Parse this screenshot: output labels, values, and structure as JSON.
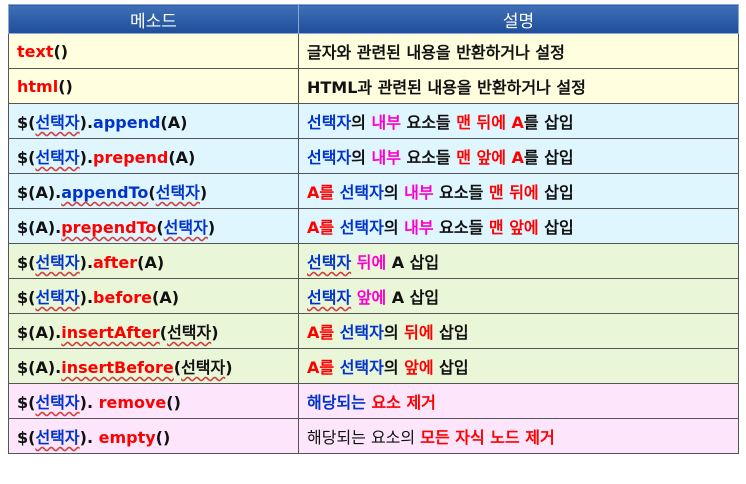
{
  "table": {
    "header": {
      "method": "메소드",
      "description": "설명"
    },
    "rows": [
      {
        "bg": "#ffffe0",
        "method": [
          {
            "t": "text",
            "c": "red"
          },
          {
            "t": "()",
            "c": "blk"
          }
        ],
        "desc": [
          {
            "t": "글자와 관련된 내용을 반환하거나 설정",
            "c": "blk"
          }
        ]
      },
      {
        "bg": "#ffffe0",
        "method": [
          {
            "t": "html",
            "c": "red"
          },
          {
            "t": "()",
            "c": "blk"
          }
        ],
        "desc": [
          {
            "t": "HTML과 관련된 내용을 반환하거나 설정",
            "c": "blk"
          }
        ]
      },
      {
        "bg": "#dff6ff",
        "method": [
          {
            "t": "$(",
            "c": "blk"
          },
          {
            "t": "선택자",
            "c": "blue",
            "sq": true
          },
          {
            "t": ").",
            "c": "blk"
          },
          {
            "t": "append",
            "c": "blue"
          },
          {
            "t": "(A)",
            "c": "blk"
          }
        ],
        "desc": [
          {
            "t": "선택자",
            "c": "blue"
          },
          {
            "t": "의 ",
            "c": "blk"
          },
          {
            "t": "내부",
            "c": "mag"
          },
          {
            "t": " 요소들 ",
            "c": "blk"
          },
          {
            "t": "맨 뒤에 A",
            "c": "red"
          },
          {
            "t": "를 삽입",
            "c": "blk"
          }
        ]
      },
      {
        "bg": "#dff6ff",
        "method": [
          {
            "t": "$(",
            "c": "blk"
          },
          {
            "t": "선택자",
            "c": "blue",
            "sq": true
          },
          {
            "t": ").",
            "c": "blk"
          },
          {
            "t": "prepend",
            "c": "red"
          },
          {
            "t": "(A)",
            "c": "blk"
          }
        ],
        "desc": [
          {
            "t": "선택자",
            "c": "blue"
          },
          {
            "t": "의 ",
            "c": "blk"
          },
          {
            "t": "내부",
            "c": "mag"
          },
          {
            "t": " 요소들 ",
            "c": "blk"
          },
          {
            "t": "맨 앞에 A",
            "c": "red"
          },
          {
            "t": "를 삽입",
            "c": "blk"
          }
        ]
      },
      {
        "bg": "#dff6ff",
        "method": [
          {
            "t": "$(A).",
            "c": "blk"
          },
          {
            "t": "appendTo",
            "c": "blue",
            "sq": true
          },
          {
            "t": "(",
            "c": "blk"
          },
          {
            "t": "선택자",
            "c": "blue",
            "sq": true
          },
          {
            "t": ")",
            "c": "blk"
          }
        ],
        "desc": [
          {
            "t": "A",
            "c": "red"
          },
          {
            "t": "를 ",
            "c": "red"
          },
          {
            "t": "선택자",
            "c": "blue"
          },
          {
            "t": "의 ",
            "c": "blk"
          },
          {
            "t": "내부",
            "c": "mag"
          },
          {
            "t": " 요소들 ",
            "c": "blk"
          },
          {
            "t": "맨 뒤에",
            "c": "red"
          },
          {
            "t": " 삽입",
            "c": "blk"
          }
        ]
      },
      {
        "bg": "#dff6ff",
        "method": [
          {
            "t": "$(A).",
            "c": "blk"
          },
          {
            "t": "prependTo",
            "c": "red",
            "sq": true
          },
          {
            "t": "(",
            "c": "blk"
          },
          {
            "t": "선택자",
            "c": "blue",
            "sq": true
          },
          {
            "t": ")",
            "c": "blk"
          }
        ],
        "desc": [
          {
            "t": "A",
            "c": "red"
          },
          {
            "t": "를 ",
            "c": "red"
          },
          {
            "t": "선택자",
            "c": "blue"
          },
          {
            "t": "의 ",
            "c": "blk"
          },
          {
            "t": "내부",
            "c": "mag"
          },
          {
            "t": " 요소들 ",
            "c": "blk"
          },
          {
            "t": "맨 앞에",
            "c": "red"
          },
          {
            "t": " 삽입",
            "c": "blk"
          }
        ]
      },
      {
        "bg": "#eaf6d8",
        "method": [
          {
            "t": "$(",
            "c": "blk"
          },
          {
            "t": "선택자",
            "c": "blue",
            "sq": true
          },
          {
            "t": ").",
            "c": "blk"
          },
          {
            "t": "after",
            "c": "red"
          },
          {
            "t": "(A)",
            "c": "blk"
          }
        ],
        "desc": [
          {
            "t": "선택자",
            "c": "blue",
            "sq": true
          },
          {
            "t": " 뒤에",
            "c": "mag"
          },
          {
            "t": " A 삽입",
            "c": "blk"
          }
        ]
      },
      {
        "bg": "#eaf6d8",
        "method": [
          {
            "t": "$(",
            "c": "blk"
          },
          {
            "t": "선택자",
            "c": "blue",
            "sq": true
          },
          {
            "t": ").",
            "c": "blk"
          },
          {
            "t": "before",
            "c": "red"
          },
          {
            "t": "(A)",
            "c": "blk"
          }
        ],
        "desc": [
          {
            "t": "선택자",
            "c": "blue",
            "sq": true
          },
          {
            "t": " 앞에",
            "c": "mag"
          },
          {
            "t": " A 삽입",
            "c": "blk"
          }
        ]
      },
      {
        "bg": "#eaf6d8",
        "method": [
          {
            "t": "$(A).",
            "c": "blk"
          },
          {
            "t": "insertAfter",
            "c": "red",
            "sq": true
          },
          {
            "t": "(",
            "c": "blk"
          },
          {
            "t": "선택자",
            "c": "blk",
            "sq": true
          },
          {
            "t": ")",
            "c": "blk"
          }
        ],
        "desc": [
          {
            "t": "A",
            "c": "red"
          },
          {
            "t": "를 ",
            "c": "red"
          },
          {
            "t": "선택자",
            "c": "blue"
          },
          {
            "t": "의 ",
            "c": "blk"
          },
          {
            "t": "뒤에",
            "c": "red"
          },
          {
            "t": " 삽입",
            "c": "blk"
          }
        ]
      },
      {
        "bg": "#eaf6d8",
        "method": [
          {
            "t": "$(A).",
            "c": "blk"
          },
          {
            "t": "insertBefore",
            "c": "red",
            "sq": true
          },
          {
            "t": "(",
            "c": "blk"
          },
          {
            "t": "선택자",
            "c": "blk",
            "sq": true
          },
          {
            "t": ")",
            "c": "blk"
          }
        ],
        "desc": [
          {
            "t": "A",
            "c": "red"
          },
          {
            "t": "를 ",
            "c": "red"
          },
          {
            "t": "선택자",
            "c": "blue"
          },
          {
            "t": "의 ",
            "c": "blk"
          },
          {
            "t": "앞에",
            "c": "red"
          },
          {
            "t": " 삽입",
            "c": "blk"
          }
        ]
      },
      {
        "bg": "#fde6fb",
        "method": [
          {
            "t": "$(",
            "c": "blk"
          },
          {
            "t": "선택자",
            "c": "blue",
            "sq": true
          },
          {
            "t": "). ",
            "c": "blk"
          },
          {
            "t": "remove",
            "c": "red"
          },
          {
            "t": "()",
            "c": "blk"
          }
        ],
        "desc": [
          {
            "t": "해당되는 ",
            "c": "blue"
          },
          {
            "t": "요소 제거",
            "c": "red"
          }
        ]
      },
      {
        "bg": "#fde6fb",
        "method": [
          {
            "t": "$(",
            "c": "blk"
          },
          {
            "t": "선택자",
            "c": "blue",
            "sq": true
          },
          {
            "t": "). ",
            "c": "blk"
          },
          {
            "t": "empty",
            "c": "red"
          },
          {
            "t": "()",
            "c": "blk"
          }
        ],
        "desc": [
          {
            "t": "해당되는 요소의 ",
            "c": "blk",
            "plain": true
          },
          {
            "t": "모든 자식 노드 제거",
            "c": "red"
          }
        ]
      }
    ]
  }
}
